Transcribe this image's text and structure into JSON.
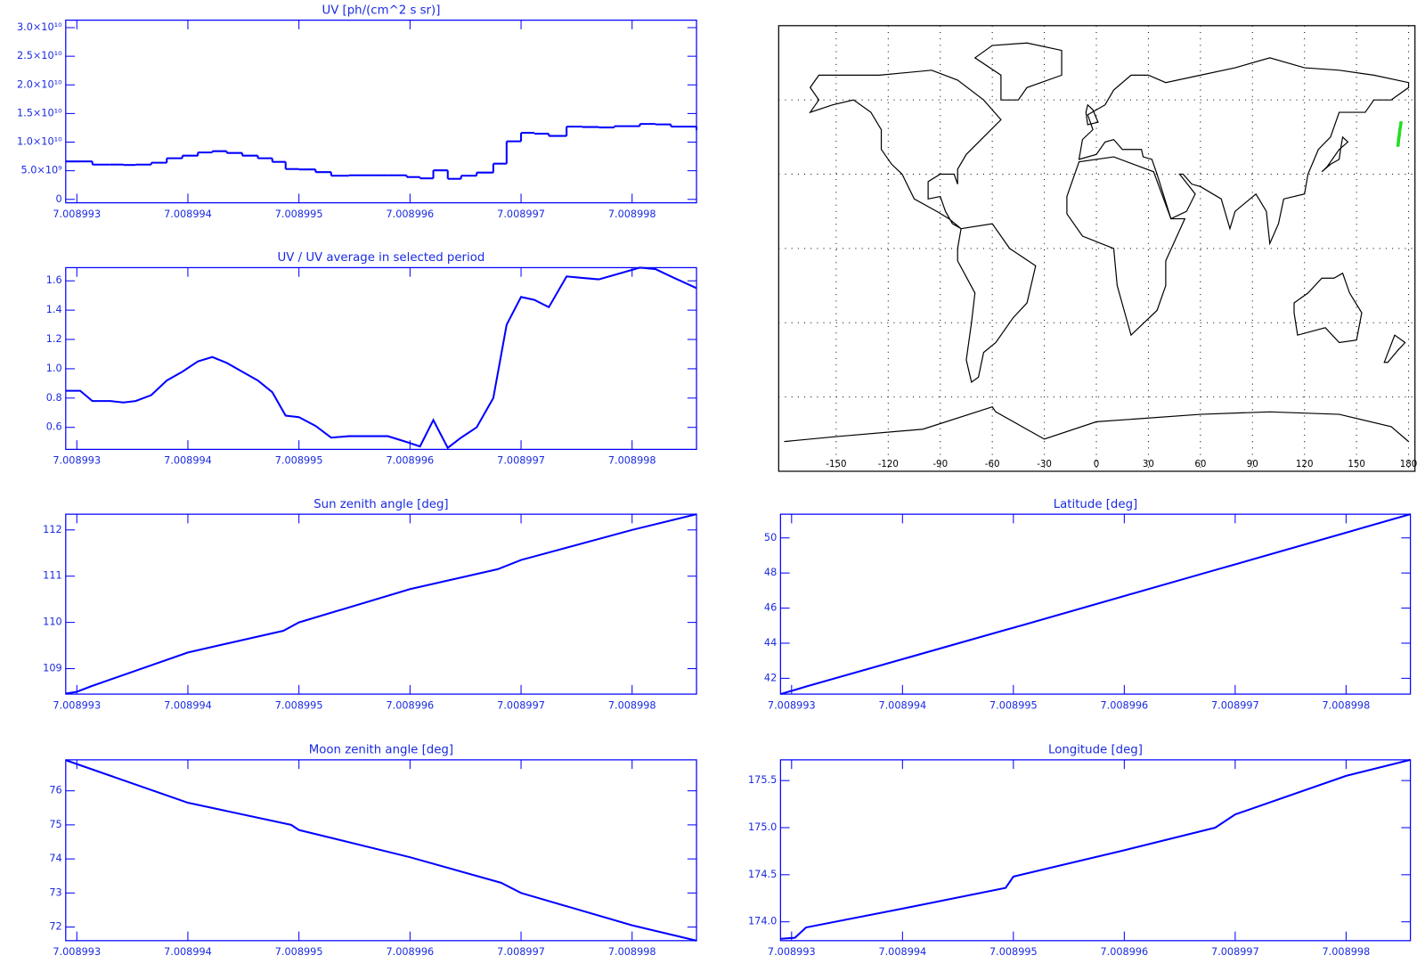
{
  "chart_data": [
    {
      "type": "step",
      "title": "UV [ph/(cm^2 s sr)]",
      "color": "#0000ff",
      "xlim": [
        7.0089929,
        7.00899858
      ],
      "xticks": [
        7.008993,
        7.008994,
        7.008995,
        7.008996,
        7.008997,
        7.008998
      ],
      "ylim": [
        -600000000.0,
        31300000000.0
      ],
      "yticks": [
        0,
        {
          "value": 5000000000.0,
          "label": "5.0×10⁹"
        },
        {
          "value": 10000000000.0,
          "label": "1.0×10¹⁰"
        },
        {
          "value": 15000000000.0,
          "label": "1.5×10¹⁰"
        },
        {
          "value": 20000000000.0,
          "label": "2.0×10¹⁰"
        },
        {
          "value": 25000000000.0,
          "label": "2.5×10¹⁰"
        },
        {
          "value": 30000000000.0,
          "label": "3.0×10¹⁰"
        }
      ],
      "x": [
        7.0089929,
        7.00899303,
        7.00899314,
        7.0089933,
        7.00899342,
        7.00899353,
        7.00899367,
        7.00899381,
        7.00899395,
        7.00899409,
        7.00899422,
        7.00899435,
        7.00899449,
        7.00899463,
        7.00899476,
        7.00899488,
        7.008995,
        7.00899515,
        7.00899529,
        7.00899545,
        7.00899564,
        7.0089958,
        7.00899597,
        7.00899609,
        7.00899621,
        7.00899634,
        7.00899646,
        7.0089966,
        7.00899675,
        7.00899687,
        7.008997,
        7.00899712,
        7.00899725,
        7.00899741,
        7.00899755,
        7.0089977,
        7.00899784,
        7.00899807,
        7.00899821,
        7.00899835,
        7.00899858
      ],
      "values": [
        6630000000.0,
        6630000000.0,
        6080000000.0,
        6080000000.0,
        6010000000.0,
        6080000000.0,
        6400000000.0,
        7180000000.0,
        7640000000.0,
        8190000000.0,
        8420000000.0,
        8110000000.0,
        7640000000.0,
        7180000000.0,
        6550000000.0,
        5300000000.0,
        5230000000.0,
        4760000000.0,
        4130000000.0,
        4210000000.0,
        4210000000.0,
        4210000000.0,
        3900000000.0,
        3670000000.0,
        5070000000.0,
        3590000000.0,
        4130000000.0,
        4680000000.0,
        6240000000.0,
        10140000000.0,
        11620000000.0,
        11470000000.0,
        11080000000.0,
        12710000000.0,
        12640000000.0,
        12560000000.0,
        12790000000.0,
        13180000000.0,
        13100000000.0,
        12710000000.0,
        12090000000.0
      ]
    },
    {
      "type": "line",
      "title": "UV / UV average in selected period",
      "color": "#0000ff",
      "xlim": [
        7.0089929,
        7.00899858
      ],
      "xticks": [
        7.008993,
        7.008994,
        7.008995,
        7.008996,
        7.008997,
        7.008998
      ],
      "ylim": [
        0.45,
        1.69
      ],
      "yticks": [
        0.6,
        0.8,
        {
          "value": 1.0,
          "label": "1.0"
        },
        1.2,
        1.4,
        1.6
      ],
      "x": [
        7.0089929,
        7.00899303,
        7.00899314,
        7.0089933,
        7.00899342,
        7.00899353,
        7.00899367,
        7.00899381,
        7.00899395,
        7.00899409,
        7.00899422,
        7.00899435,
        7.00899449,
        7.00899463,
        7.00899476,
        7.00899488,
        7.008995,
        7.00899515,
        7.00899529,
        7.00899545,
        7.00899564,
        7.0089958,
        7.00899597,
        7.00899609,
        7.00899621,
        7.00899634,
        7.00899646,
        7.0089966,
        7.00899675,
        7.00899687,
        7.008997,
        7.00899712,
        7.00899725,
        7.00899741,
        7.00899755,
        7.0089977,
        7.00899784,
        7.00899807,
        7.00899821,
        7.00899835,
        7.00899858
      ],
      "values": [
        0.85,
        0.85,
        0.78,
        0.78,
        0.77,
        0.78,
        0.82,
        0.92,
        0.98,
        1.05,
        1.08,
        1.04,
        0.98,
        0.92,
        0.84,
        0.68,
        0.67,
        0.61,
        0.53,
        0.54,
        0.54,
        0.54,
        0.5,
        0.47,
        0.65,
        0.46,
        0.53,
        0.6,
        0.8,
        1.3,
        1.49,
        1.47,
        1.42,
        1.63,
        1.62,
        1.61,
        1.64,
        1.69,
        1.68,
        1.63,
        1.55
      ]
    },
    {
      "type": "map",
      "xlim": [
        -180,
        180
      ],
      "ylim": [
        -90,
        90
      ],
      "xticks": [
        -150,
        -120,
        -90,
        -60,
        -30,
        0,
        30,
        60,
        90,
        120,
        150,
        180
      ],
      "grid_lat": [
        -60,
        -30,
        0,
        30,
        60
      ],
      "grid": true,
      "track_color": "#22dd22"
    },
    {
      "type": "line",
      "title": "Sun zenith angle [deg]",
      "color": "#0000ff",
      "xlim": [
        7.0089929,
        7.00899858
      ],
      "xticks": [
        7.008993,
        7.008994,
        7.008995,
        7.008996,
        7.008997,
        7.008998
      ],
      "ylim": [
        108.45,
        112.34
      ],
      "yticks": [
        109,
        110,
        111,
        112
      ],
      "x": [
        7.0089929,
        7.008993,
        7.00899313,
        7.008994,
        7.00899486,
        7.008995,
        7.008996,
        7.00899679,
        7.008997,
        7.008998,
        7.00899858
      ],
      "values": [
        108.46,
        108.5,
        108.62,
        109.35,
        109.82,
        110.0,
        110.72,
        111.15,
        111.35,
        112.0,
        112.34
      ]
    },
    {
      "type": "line",
      "title": "Latitude [deg]",
      "color": "#0000ff",
      "xlim": [
        7.0089929,
        7.00899858
      ],
      "xticks": [
        7.008993,
        7.008994,
        7.008995,
        7.008996,
        7.008997,
        7.008998
      ],
      "ylim": [
        41.1,
        51.35
      ],
      "yticks": [
        42,
        44,
        46,
        48,
        50
      ],
      "x": [
        7.0089929,
        7.00899303,
        7.00899313,
        7.008994,
        7.00899493,
        7.008995,
        7.008996,
        7.00899682,
        7.008997,
        7.008998,
        7.00899858
      ],
      "values": [
        41.1,
        41.34,
        41.53,
        43.09,
        44.76,
        44.88,
        46.69,
        48.17,
        48.49,
        50.3,
        51.35
      ]
    },
    {
      "type": "line",
      "title": "Moon zenith angle [deg]",
      "color": "#0000ff",
      "xlim": [
        7.0089929,
        7.00899858
      ],
      "xticks": [
        7.008993,
        7.008994,
        7.008995,
        7.008996,
        7.008997,
        7.008998
      ],
      "ylim": [
        71.6,
        76.91
      ],
      "yticks": [
        72,
        73,
        74,
        75,
        76
      ],
      "x": [
        7.0089929,
        7.008994,
        7.00899493,
        7.008995,
        7.008996,
        7.00899682,
        7.008997,
        7.008998,
        7.00899858
      ],
      "values": [
        76.9,
        75.65,
        75.0,
        74.85,
        74.05,
        73.3,
        73.0,
        72.05,
        71.6
      ]
    },
    {
      "type": "line",
      "title": "Longitude [deg]",
      "color": "#0000ff",
      "xlim": [
        7.0089929,
        7.00899858
      ],
      "xticks": [
        7.008993,
        7.008994,
        7.008995,
        7.008996,
        7.008997,
        7.008998
      ],
      "ylim": [
        173.8,
        175.72
      ],
      "yticks": [
        {
          "value": 174.0,
          "label": "174.0"
        },
        174.5,
        {
          "value": 175.0,
          "label": "175.0"
        },
        175.5
      ],
      "x": [
        7.0089929,
        7.00899303,
        7.00899313,
        7.008994,
        7.00899493,
        7.008995,
        7.008996,
        7.00899682,
        7.008997,
        7.008998,
        7.00899858
      ],
      "values": [
        173.82,
        173.83,
        173.94,
        174.14,
        174.36,
        174.48,
        174.76,
        175.0,
        175.14,
        175.55,
        175.72
      ]
    }
  ]
}
